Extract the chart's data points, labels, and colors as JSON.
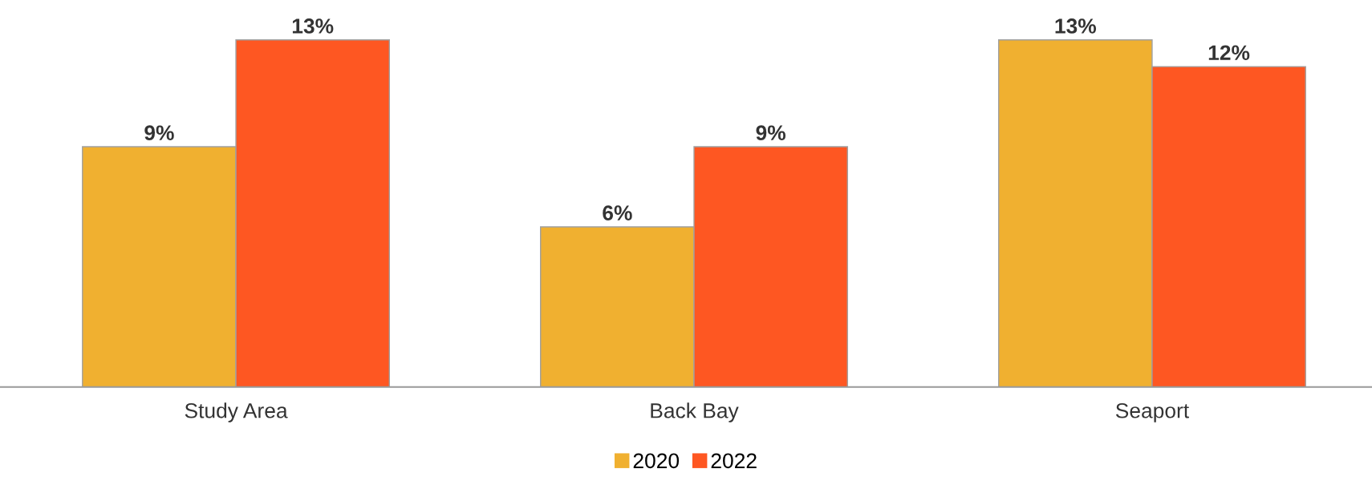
{
  "chart_data": {
    "type": "bar",
    "categories": [
      "Study Area",
      "Back Bay",
      "Seaport"
    ],
    "series": [
      {
        "name": "2020",
        "color": "#f0b030",
        "values": [
          9,
          6,
          13
        ],
        "value_labels": [
          "9%",
          "6%",
          "13%"
        ]
      },
      {
        "name": "2022",
        "color": "#fe5722",
        "values": [
          13,
          9,
          12
        ],
        "value_labels": [
          "13%",
          "9%",
          "12%"
        ]
      }
    ],
    "tick_labels": "x",
    "grid": false,
    "legend": "bottom"
  }
}
